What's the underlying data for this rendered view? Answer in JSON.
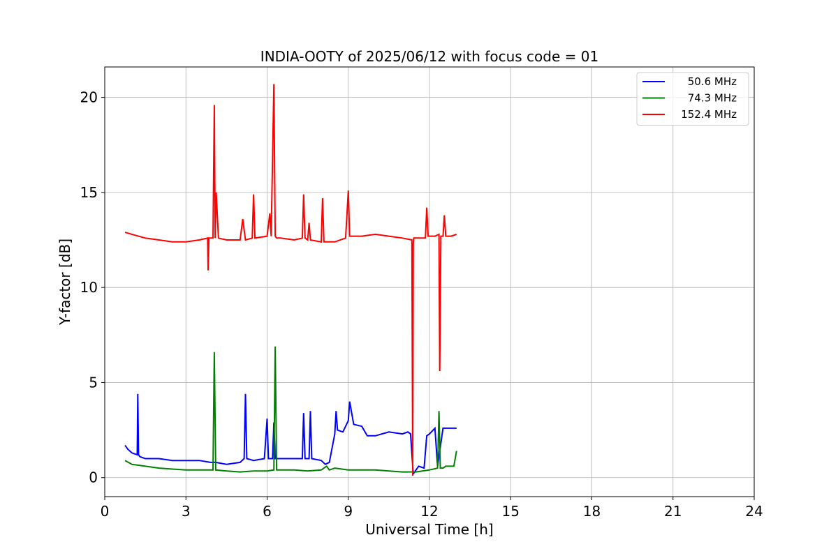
{
  "chart_data": {
    "type": "line",
    "title": "INDIA-OOTY of 2025/06/12 with focus code = 01",
    "xlabel": "Universal Time [h]",
    "ylabel": "Y-factor [dB]",
    "xlim": [
      0,
      24
    ],
    "ylim": [
      -1.0,
      21.6
    ],
    "xticks": [
      0,
      3,
      6,
      9,
      12,
      15,
      18,
      21,
      24
    ],
    "yticks": [
      0,
      5,
      10,
      15,
      20
    ],
    "grid": true,
    "legend_position": "top-right",
    "series": [
      {
        "name": "50.6 MHz",
        "color": "#0000ff",
        "x": [
          0.75,
          0.85,
          1.0,
          1.2,
          1.22,
          1.25,
          1.3,
          1.5,
          2.0,
          2.5,
          3.0,
          3.5,
          3.9,
          4.1,
          4.5,
          5.0,
          5.15,
          5.2,
          5.25,
          5.5,
          5.9,
          6.0,
          6.05,
          6.2,
          6.25,
          6.3,
          6.5,
          7.0,
          7.3,
          7.35,
          7.4,
          7.55,
          7.6,
          7.65,
          8.0,
          8.15,
          8.3,
          8.5,
          8.55,
          8.6,
          8.8,
          9.0,
          9.05,
          9.2,
          9.5,
          9.7,
          10.0,
          10.5,
          11.0,
          11.2,
          11.3,
          11.4,
          11.6,
          11.8,
          11.9,
          12.0,
          12.2,
          12.3,
          12.5,
          12.8,
          13.0
        ],
        "y": [
          1.7,
          1.5,
          1.3,
          1.2,
          4.4,
          1.2,
          1.1,
          1.0,
          1.0,
          0.9,
          0.9,
          0.9,
          0.8,
          0.8,
          0.7,
          0.8,
          1.0,
          4.4,
          1.0,
          0.9,
          1.0,
          3.1,
          1.0,
          1.0,
          2.9,
          1.0,
          1.0,
          1.0,
          1.0,
          3.4,
          1.0,
          1.0,
          3.5,
          1.0,
          0.9,
          0.7,
          0.8,
          2.3,
          3.5,
          2.5,
          2.4,
          3.0,
          4.0,
          2.8,
          2.7,
          2.2,
          2.2,
          2.4,
          2.3,
          2.4,
          2.3,
          0.2,
          0.6,
          0.5,
          2.2,
          2.3,
          2.6,
          0.6,
          2.6,
          2.6,
          2.6
        ]
      },
      {
        "name": "74.3 MHz",
        "color": "#008000",
        "x": [
          0.75,
          1.0,
          1.5,
          2.0,
          2.5,
          3.0,
          3.5,
          4.0,
          4.05,
          4.1,
          4.5,
          5.0,
          5.5,
          6.0,
          6.25,
          6.3,
          6.35,
          6.5,
          7.0,
          7.5,
          8.0,
          8.2,
          8.3,
          8.5,
          9.0,
          9.5,
          10.0,
          10.5,
          11.0,
          11.4,
          11.5,
          12.0,
          12.3,
          12.35,
          12.4,
          12.5,
          12.6,
          12.9,
          13.0
        ],
        "y": [
          0.9,
          0.7,
          0.6,
          0.5,
          0.45,
          0.4,
          0.4,
          0.4,
          6.6,
          0.4,
          0.35,
          0.3,
          0.35,
          0.35,
          0.4,
          6.9,
          0.4,
          0.4,
          0.4,
          0.35,
          0.4,
          0.6,
          0.4,
          0.5,
          0.4,
          0.4,
          0.4,
          0.35,
          0.3,
          0.3,
          0.3,
          0.4,
          0.5,
          3.5,
          0.5,
          0.5,
          0.6,
          0.6,
          1.4
        ]
      },
      {
        "name": "152.4 MHz",
        "color": "#ff0000",
        "x": [
          0.75,
          1.0,
          1.5,
          2.0,
          2.5,
          3.0,
          3.5,
          3.8,
          3.82,
          3.85,
          4.0,
          4.05,
          4.08,
          4.12,
          4.2,
          4.5,
          5.0,
          5.1,
          5.2,
          5.45,
          5.5,
          5.55,
          6.0,
          6.1,
          6.15,
          6.25,
          6.3,
          6.35,
          6.5,
          7.0,
          7.3,
          7.35,
          7.4,
          7.5,
          7.55,
          7.6,
          8.0,
          8.05,
          8.1,
          8.5,
          8.9,
          9.0,
          9.05,
          9.5,
          10.0,
          10.5,
          11.0,
          11.35,
          11.38,
          11.4,
          11.42,
          11.5,
          11.85,
          11.9,
          11.95,
          12.2,
          12.35,
          12.38,
          12.42,
          12.5,
          12.55,
          12.6,
          12.8,
          13.0
        ],
        "y": [
          12.9,
          12.8,
          12.6,
          12.5,
          12.4,
          12.4,
          12.5,
          12.6,
          10.9,
          12.6,
          12.6,
          19.6,
          12.6,
          15.0,
          12.6,
          12.5,
          12.5,
          13.6,
          12.5,
          12.6,
          14.9,
          12.6,
          12.7,
          13.9,
          12.7,
          20.7,
          12.7,
          12.6,
          12.6,
          12.5,
          12.6,
          14.9,
          12.6,
          12.5,
          13.4,
          12.5,
          12.4,
          14.7,
          12.4,
          12.4,
          12.6,
          15.1,
          12.7,
          12.7,
          12.8,
          12.7,
          12.6,
          12.5,
          0.1,
          12.3,
          12.6,
          12.6,
          12.6,
          14.2,
          12.7,
          12.7,
          12.8,
          5.6,
          12.7,
          12.7,
          13.8,
          12.7,
          12.7,
          12.8
        ]
      }
    ]
  }
}
